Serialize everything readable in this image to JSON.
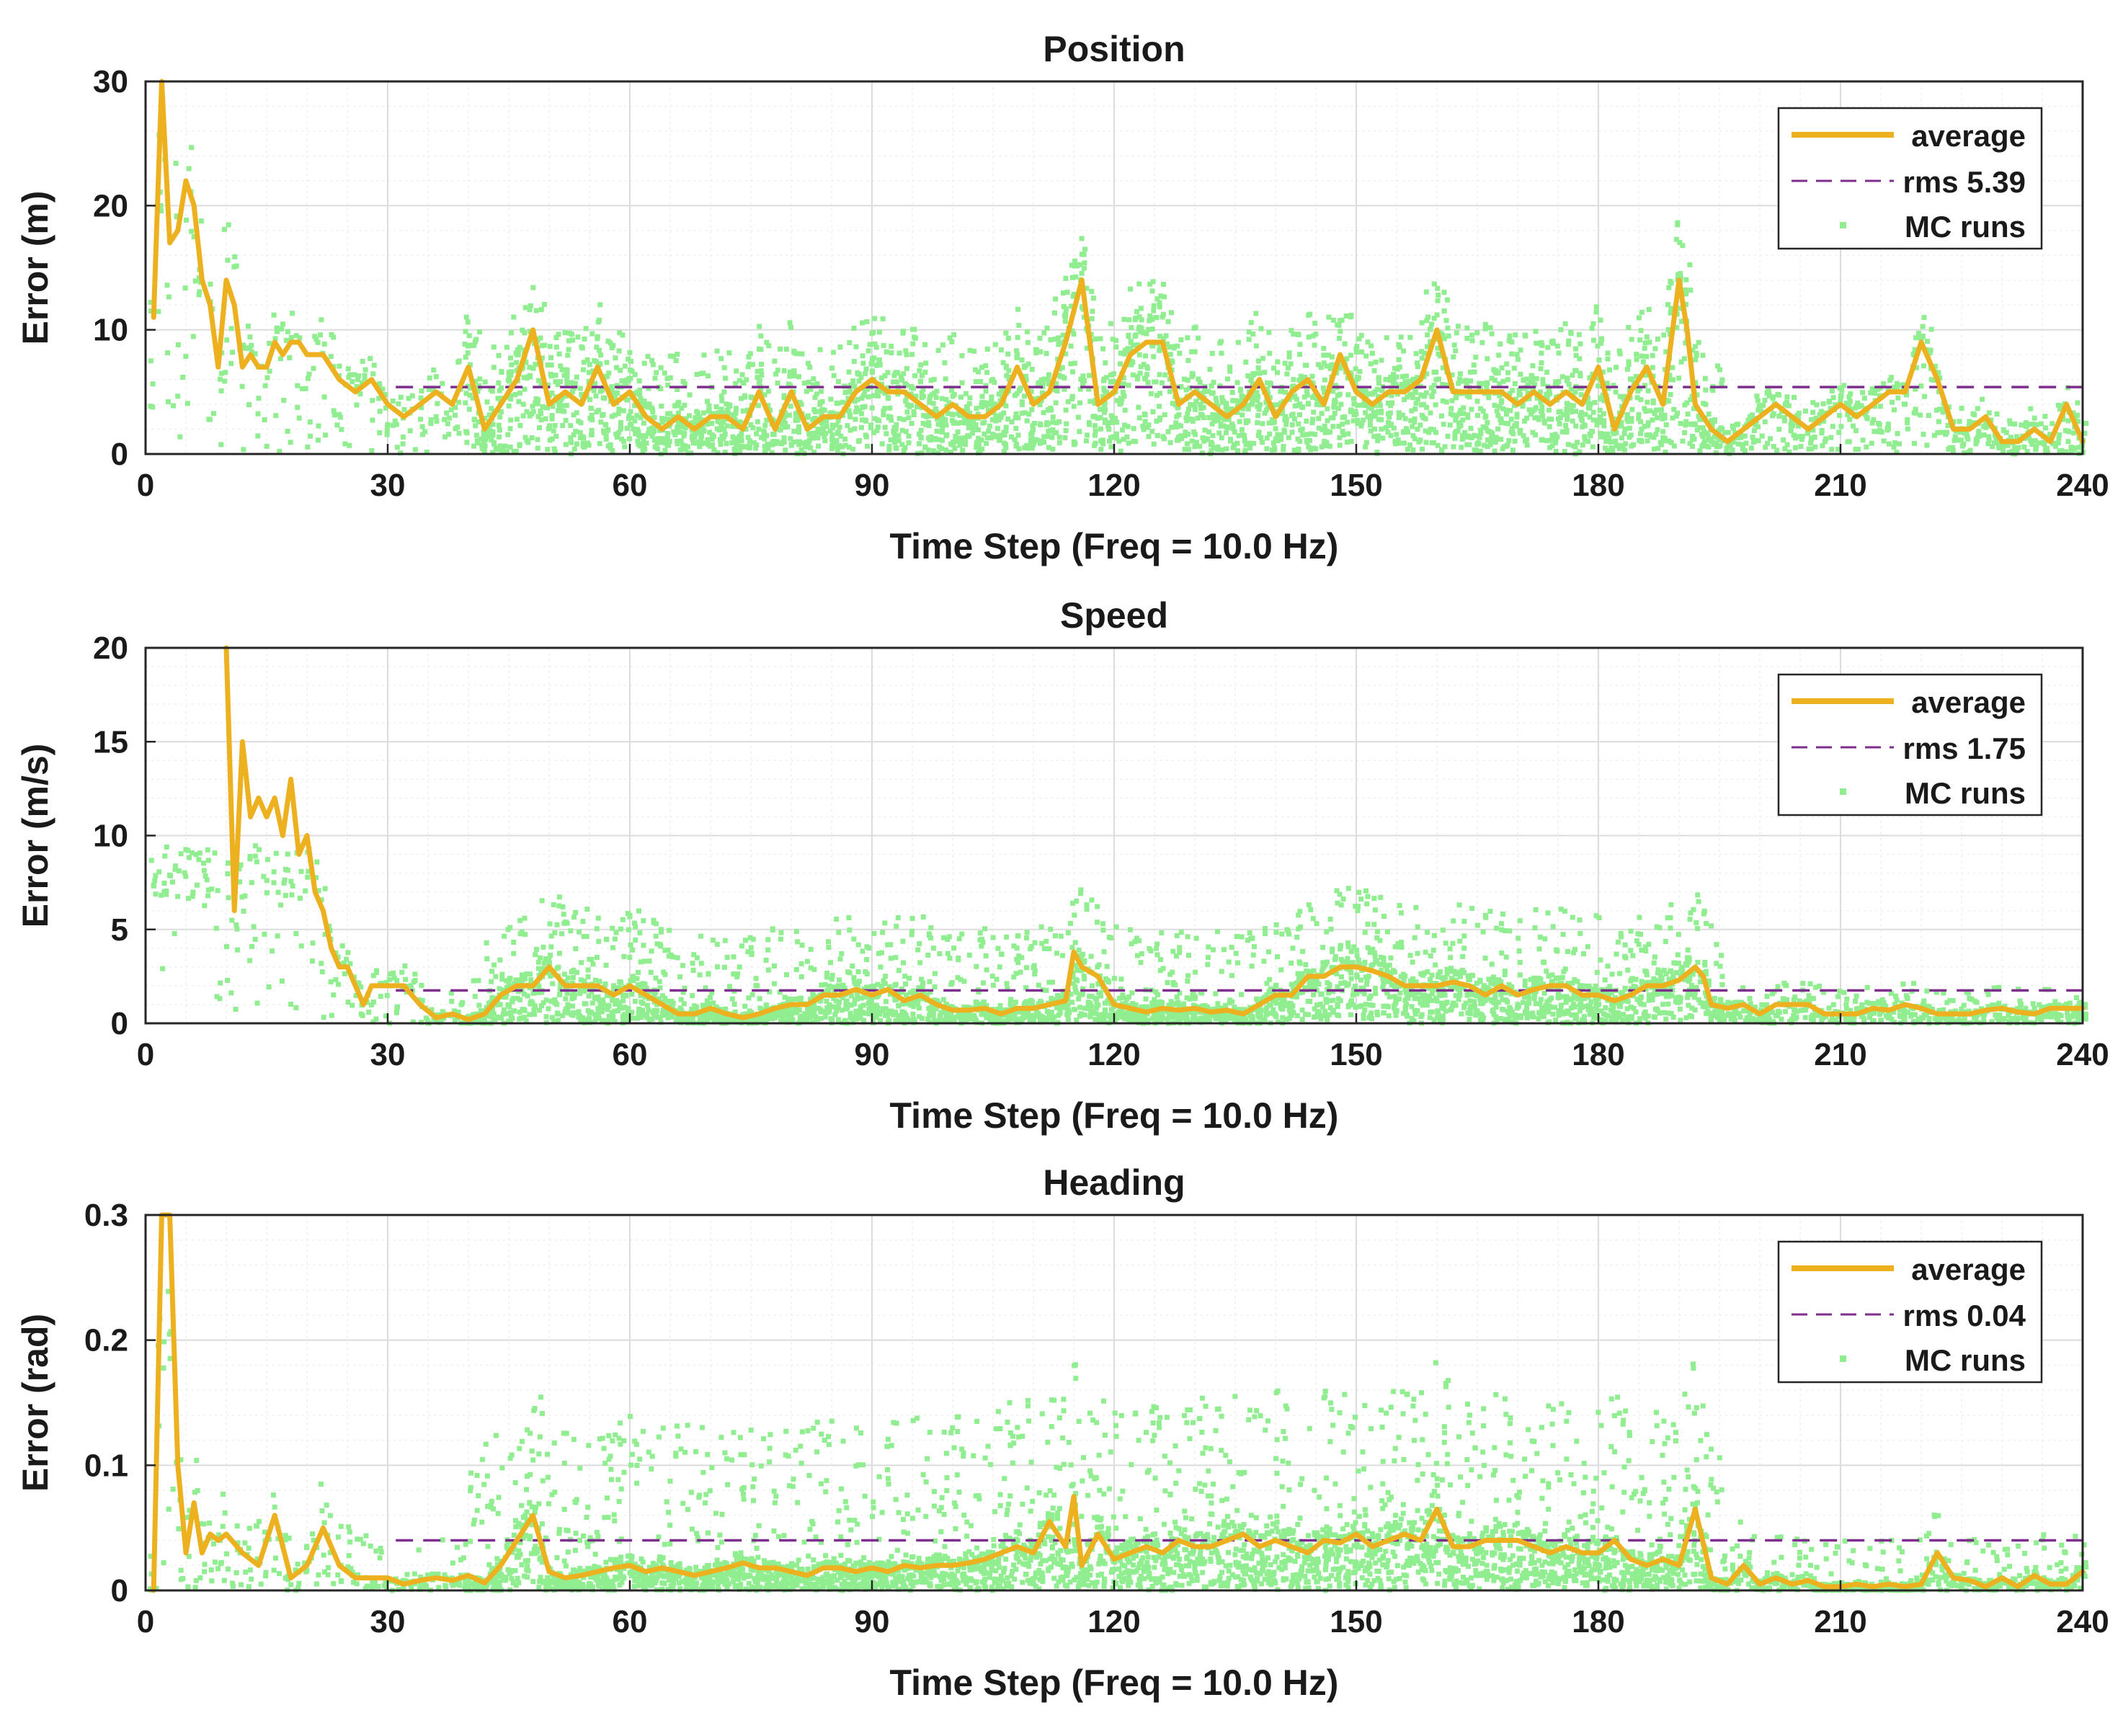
{
  "colors": {
    "average": "#EDB120",
    "rms": "#7E2F8E",
    "mc": "#90EE90",
    "grid": "#dcdcdc",
    "minorGrid": "#efefef",
    "axis": "#262626"
  },
  "chart_data": [
    {
      "type": "line",
      "title": "Position",
      "xlabel": "Time Step (Freq = 10.0 Hz)",
      "ylabel": "Error (m)",
      "xlim": [
        0,
        240
      ],
      "ylim": [
        0,
        30
      ],
      "xticks": [
        0,
        30,
        60,
        90,
        120,
        150,
        180,
        210,
        240
      ],
      "yticks": [
        0,
        10,
        20,
        30
      ],
      "xtick_labels": [
        "0",
        "30",
        "60",
        "90",
        "120",
        "150",
        "180",
        "210",
        "240"
      ],
      "ytick_labels": [
        "0",
        "10",
        "20",
        "30"
      ],
      "grid": true,
      "legend_position": "top-right",
      "legend": {
        "average": "average",
        "rms": "rms 5.39",
        "mc": "MC runs"
      },
      "rms": {
        "value": 5.39,
        "x_start": 31,
        "x_end": 240
      },
      "average": {
        "x": [
          1,
          2,
          3,
          4,
          5,
          6,
          7,
          8,
          9,
          10,
          11,
          12,
          13,
          14,
          15,
          16,
          17,
          18,
          19,
          20,
          22,
          24,
          26,
          28,
          30,
          32,
          34,
          36,
          38,
          40,
          42,
          44,
          46,
          48,
          50,
          52,
          54,
          56,
          58,
          60,
          62,
          64,
          66,
          68,
          70,
          72,
          74,
          76,
          78,
          80,
          82,
          84,
          86,
          88,
          90,
          92,
          94,
          96,
          98,
          100,
          102,
          104,
          106,
          108,
          110,
          112,
          114,
          116,
          118,
          120,
          122,
          124,
          126,
          128,
          130,
          132,
          134,
          136,
          138,
          140,
          142,
          144,
          146,
          148,
          150,
          152,
          154,
          156,
          158,
          160,
          162,
          164,
          166,
          168,
          170,
          172,
          174,
          176,
          178,
          180,
          182,
          184,
          186,
          188,
          190,
          191,
          192,
          194,
          196,
          198,
          200,
          202,
          204,
          206,
          208,
          210,
          212,
          214,
          216,
          218,
          220,
          222,
          224,
          226,
          228,
          230,
          232,
          234,
          236,
          238,
          240
        ],
        "y": [
          11,
          30,
          17,
          18,
          22,
          20,
          14,
          12,
          7,
          14,
          12,
          7,
          8,
          7,
          7,
          9,
          8,
          9,
          9,
          8,
          8,
          6,
          5,
          6,
          4,
          3,
          4,
          5,
          4,
          7,
          2,
          4,
          6,
          10,
          4,
          5,
          4,
          7,
          4,
          5,
          3,
          2,
          3,
          2,
          3,
          3,
          2,
          5,
          2,
          5,
          2,
          3,
          3,
          5,
          6,
          5,
          5,
          4,
          3,
          4,
          3,
          3,
          4,
          7,
          4,
          5,
          9,
          14,
          4,
          5,
          8,
          9,
          9,
          4,
          5,
          4,
          3,
          4,
          6,
          3,
          5,
          6,
          4,
          8,
          5,
          4,
          5,
          5,
          6,
          10,
          5,
          5,
          5,
          5,
          4,
          5,
          4,
          5,
          4,
          7,
          2,
          5,
          7,
          4,
          14,
          10,
          4,
          2,
          1,
          2,
          3,
          4,
          3,
          2,
          3,
          4,
          3,
          4,
          5,
          5,
          9,
          6,
          2,
          2,
          3,
          1,
          1,
          2,
          1,
          4,
          1
        ]
      },
      "mc": {
        "seed": 11,
        "per_step": 22,
        "spread_scale": 0.75,
        "cap": 28
      }
    },
    {
      "type": "line",
      "title": "Speed",
      "xlabel": "Time Step (Freq = 10.0 Hz)",
      "ylabel": "Error (m/s)",
      "xlim": [
        0,
        240
      ],
      "ylim": [
        0,
        20
      ],
      "xticks": [
        0,
        30,
        60,
        90,
        120,
        150,
        180,
        210,
        240
      ],
      "yticks": [
        0,
        5,
        10,
        15,
        20
      ],
      "xtick_labels": [
        "0",
        "30",
        "60",
        "90",
        "120",
        "150",
        "180",
        "210",
        "240"
      ],
      "ytick_labels": [
        "0",
        "5",
        "10",
        "15",
        "20"
      ],
      "grid": true,
      "legend_position": "top-right",
      "legend": {
        "average": "average",
        "rms": "rms 1.75",
        "mc": "MC runs"
      },
      "rms": {
        "value": 1.75,
        "x_start": 31,
        "x_end": 240
      },
      "average": {
        "x": [
          10,
          11,
          12,
          13,
          14,
          15,
          16,
          17,
          18,
          19,
          20,
          21,
          22,
          23,
          24,
          25,
          26,
          27,
          28,
          30,
          32,
          34,
          36,
          38,
          40,
          42,
          44,
          46,
          48,
          50,
          52,
          54,
          56,
          58,
          60,
          62,
          64,
          66,
          68,
          70,
          72,
          74,
          76,
          78,
          80,
          82,
          84,
          86,
          88,
          90,
          92,
          94,
          96,
          98,
          100,
          102,
          104,
          106,
          108,
          110,
          112,
          114,
          115,
          116,
          118,
          120,
          122,
          124,
          126,
          128,
          130,
          132,
          134,
          136,
          138,
          140,
          142,
          144,
          146,
          148,
          150,
          152,
          154,
          156,
          158,
          160,
          162,
          164,
          166,
          168,
          170,
          172,
          174,
          176,
          178,
          180,
          182,
          184,
          186,
          188,
          190,
          192,
          193,
          194,
          196,
          198,
          200,
          202,
          204,
          206,
          208,
          210,
          212,
          214,
          216,
          218,
          220,
          222,
          224,
          226,
          228,
          230,
          232,
          234,
          236,
          238,
          240
        ],
        "y": [
          20,
          6,
          15,
          11,
          12,
          11,
          12,
          10,
          13,
          9,
          10,
          7,
          6,
          4,
          3,
          3,
          2,
          1,
          2,
          2,
          2,
          1,
          0.3,
          0.5,
          0.2,
          0.5,
          1.5,
          2,
          2,
          3,
          2,
          2,
          2,
          1.5,
          2,
          1.5,
          1,
          0.5,
          0.5,
          0.8,
          0.5,
          0.3,
          0.5,
          0.8,
          1,
          1,
          1.5,
          1.5,
          1.8,
          1.5,
          1.8,
          1.2,
          1.5,
          1,
          0.7,
          0.7,
          0.8,
          0.5,
          0.8,
          0.8,
          1,
          1.2,
          3.8,
          3,
          2.5,
          1,
          0.8,
          0.6,
          0.8,
          0.7,
          0.8,
          0.6,
          0.7,
          0.5,
          1,
          1.5,
          1.5,
          2.5,
          2.5,
          3,
          3,
          2.8,
          2.5,
          2,
          2,
          2,
          2.2,
          2,
          1.5,
          2,
          1.5,
          1.8,
          2,
          2,
          1.5,
          1.5,
          1.2,
          1.5,
          2,
          2,
          2.3,
          3,
          2.5,
          1,
          0.8,
          1,
          0.5,
          1,
          1,
          1,
          0.5,
          0.5,
          0.5,
          0.8,
          0.7,
          1,
          0.8,
          0.5,
          0.5,
          0.5,
          0.7,
          0.8,
          0.6,
          0.5,
          0.8,
          0.8,
          0.8
        ]
      },
      "mc": {
        "seed": 23,
        "per_step": 22,
        "spread_scale": 0.85,
        "cap": 9.5
      }
    },
    {
      "type": "line",
      "title": "Heading",
      "xlabel": "Time Step (Freq = 10.0 Hz)",
      "ylabel": "Error (rad)",
      "xlim": [
        0,
        240
      ],
      "ylim": [
        0,
        0.3
      ],
      "xticks": [
        0,
        30,
        60,
        90,
        120,
        150,
        180,
        210,
        240
      ],
      "yticks": [
        0,
        0.1,
        0.2,
        0.3
      ],
      "xtick_labels": [
        "0",
        "30",
        "60",
        "90",
        "120",
        "150",
        "180",
        "210",
        "240"
      ],
      "ytick_labels": [
        "0",
        "0.1",
        "0.2",
        "0.3"
      ],
      "grid": true,
      "legend_position": "top-right",
      "legend": {
        "average": "average",
        "rms": "rms 0.04",
        "mc": "MC runs"
      },
      "rms": {
        "value": 0.04,
        "x_start": 31,
        "x_end": 240
      },
      "average": {
        "x": [
          1,
          2,
          3,
          4,
          5,
          6,
          7,
          8,
          9,
          10,
          12,
          14,
          16,
          18,
          20,
          22,
          24,
          26,
          28,
          30,
          32,
          34,
          36,
          38,
          40,
          42,
          44,
          46,
          48,
          50,
          52,
          54,
          56,
          58,
          60,
          62,
          64,
          66,
          68,
          70,
          72,
          74,
          76,
          78,
          80,
          82,
          84,
          86,
          88,
          90,
          92,
          94,
          96,
          98,
          100,
          102,
          104,
          106,
          108,
          110,
          112,
          114,
          115,
          116,
          118,
          120,
          122,
          124,
          126,
          128,
          130,
          132,
          134,
          136,
          138,
          140,
          142,
          144,
          146,
          148,
          150,
          152,
          154,
          156,
          158,
          160,
          162,
          164,
          166,
          168,
          170,
          172,
          174,
          176,
          178,
          180,
          182,
          184,
          186,
          188,
          190,
          192,
          194,
          196,
          198,
          200,
          202,
          204,
          206,
          208,
          210,
          212,
          214,
          216,
          218,
          220,
          222,
          224,
          226,
          228,
          230,
          232,
          234,
          236,
          238,
          240
        ],
        "y": [
          0,
          0.3,
          0.3,
          0.1,
          0.03,
          0.07,
          0.03,
          0.045,
          0.04,
          0.045,
          0.03,
          0.02,
          0.06,
          0.01,
          0.02,
          0.05,
          0.02,
          0.01,
          0.01,
          0.01,
          0.005,
          0.008,
          0.01,
          0.008,
          0.012,
          0.006,
          0.02,
          0.04,
          0.06,
          0.015,
          0.01,
          0.012,
          0.015,
          0.018,
          0.02,
          0.015,
          0.018,
          0.015,
          0.012,
          0.015,
          0.018,
          0.022,
          0.018,
          0.018,
          0.015,
          0.012,
          0.018,
          0.018,
          0.015,
          0.018,
          0.015,
          0.02,
          0.018,
          0.02,
          0.02,
          0.022,
          0.025,
          0.03,
          0.035,
          0.03,
          0.055,
          0.035,
          0.075,
          0.02,
          0.045,
          0.025,
          0.03,
          0.035,
          0.03,
          0.04,
          0.035,
          0.035,
          0.04,
          0.045,
          0.035,
          0.04,
          0.035,
          0.03,
          0.04,
          0.038,
          0.045,
          0.035,
          0.04,
          0.045,
          0.04,
          0.065,
          0.035,
          0.035,
          0.04,
          0.04,
          0.04,
          0.035,
          0.03,
          0.035,
          0.03,
          0.03,
          0.04,
          0.025,
          0.02,
          0.025,
          0.02,
          0.065,
          0.01,
          0.005,
          0.02,
          0.005,
          0.01,
          0.005,
          0.008,
          0.003,
          0.003,
          0.005,
          0.003,
          0.005,
          0.003,
          0.005,
          0.03,
          0.01,
          0.008,
          0.003,
          0.01,
          0.003,
          0.012,
          0.005,
          0.005,
          0.015
        ]
      },
      "mc": {
        "seed": 37,
        "per_step": 24,
        "spread_scale": 1.6,
        "cap": 0.245
      }
    }
  ]
}
